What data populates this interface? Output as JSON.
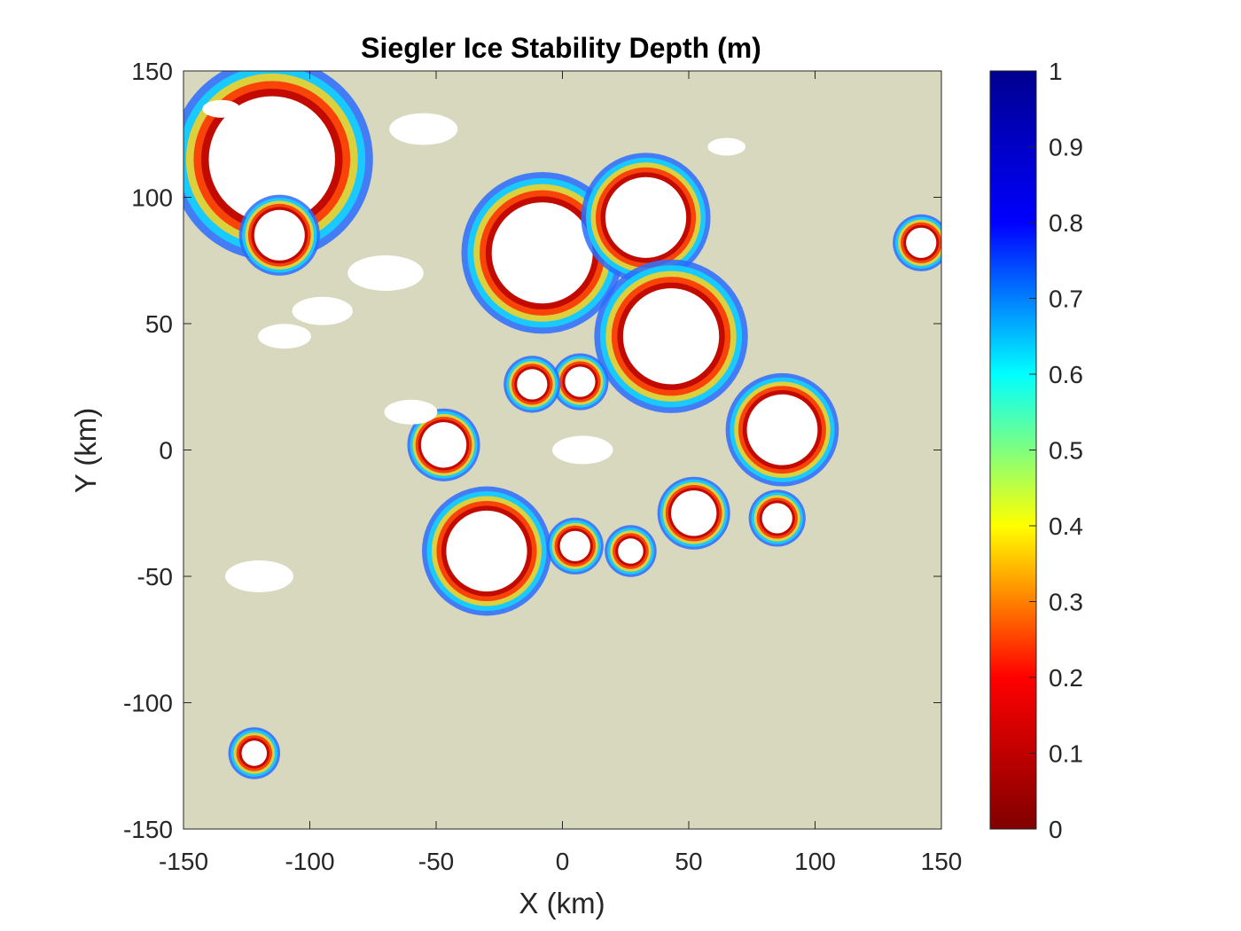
{
  "chart_data": {
    "type": "heatmap",
    "title": "Siegler Ice Stability Depth (m)",
    "xlabel": "X (km)",
    "ylabel": "Y (km)",
    "xlim": [
      -150,
      150
    ],
    "ylim": [
      -150,
      150
    ],
    "xticks": [
      -150,
      -100,
      -50,
      0,
      50,
      100,
      150
    ],
    "yticks": [
      150,
      100,
      50,
      0,
      -50,
      -100,
      -150
    ],
    "xtick_labels": [
      "-150",
      "-100",
      "-50",
      "0",
      "50",
      "100",
      "150"
    ],
    "ytick_labels": [
      "150",
      "100",
      "50",
      "0",
      "-50",
      "-100",
      "-150"
    ],
    "colorbar": {
      "colormap": "jet",
      "range": [
        0,
        1
      ],
      "ticks": [
        1,
        0.9,
        0.8,
        0.7,
        0.6,
        0.5,
        0.4,
        0.3,
        0.2,
        0.1,
        0
      ],
      "tick_labels": [
        "1",
        "0.9",
        "0.8",
        "0.7",
        "0.6",
        "0.5",
        "0.4",
        "0.3",
        "0.2",
        "0.1",
        "0"
      ],
      "colors": [
        "#800000",
        "#ff0000",
        "#ffff00",
        "#00ffff",
        "#0000ff",
        "#00008f"
      ]
    },
    "background_color": "#d8d8bf",
    "no_ice_color": "#d8d8bf",
    "surface_ice_color": "#ffffff",
    "craters": [
      {
        "x": -115,
        "y": 115,
        "r": 25
      },
      {
        "x": -112,
        "y": 85,
        "r": 10
      },
      {
        "x": -8,
        "y": 78,
        "r": 20
      },
      {
        "x": 33,
        "y": 92,
        "r": 16
      },
      {
        "x": 43,
        "y": 45,
        "r": 19
      },
      {
        "x": 87,
        "y": 8,
        "r": 14
      },
      {
        "x": -47,
        "y": 2,
        "r": 9
      },
      {
        "x": -30,
        "y": -40,
        "r": 16
      },
      {
        "x": 52,
        "y": -25,
        "r": 9
      },
      {
        "x": 85,
        "y": -27,
        "r": 6
      },
      {
        "x": 7,
        "y": 27,
        "r": 6
      },
      {
        "x": -12,
        "y": 26,
        "r": 6
      },
      {
        "x": -122,
        "y": -120,
        "r": 5
      },
      {
        "x": 142,
        "y": 82,
        "r": 6
      },
      {
        "x": 5,
        "y": -38,
        "r": 6
      },
      {
        "x": 27,
        "y": -40,
        "r": 5
      }
    ],
    "surface_ice_patches": [
      {
        "x": -55,
        "y": 127,
        "r": 9
      },
      {
        "x": -70,
        "y": 70,
        "r": 10
      },
      {
        "x": -95,
        "y": 55,
        "r": 8
      },
      {
        "x": -110,
        "y": 45,
        "r": 7
      },
      {
        "x": -60,
        "y": 15,
        "r": 7
      },
      {
        "x": 8,
        "y": 0,
        "r": 8
      },
      {
        "x": -120,
        "y": -50,
        "r": 9
      },
      {
        "x": -135,
        "y": 135,
        "r": 5
      },
      {
        "x": 65,
        "y": 120,
        "r": 5
      }
    ]
  }
}
